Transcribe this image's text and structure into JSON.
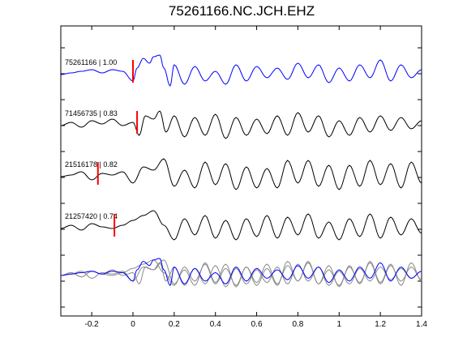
{
  "chart_data": {
    "type": "line",
    "title": "75261166.NC.JCH.EHZ",
    "xlabel": "",
    "ylabel": "",
    "xlim": [
      -0.35,
      1.4
    ],
    "xticks": [
      "-0.2",
      "0",
      "0.2",
      "0.4",
      "0.6",
      "0.8",
      "1",
      "1.2",
      "1.4"
    ],
    "xtick_values": [
      -0.2,
      0,
      0.2,
      0.4,
      0.6,
      0.8,
      1,
      1.2,
      1.4
    ],
    "grid": false,
    "colors": {
      "reference": "#0000ff",
      "other": "#000000",
      "stack_other": "#8a8a8a",
      "pick": "#ff0000",
      "axes": "#000000"
    },
    "traces": [
      {
        "label": "75261166 | 1.00",
        "pick_time": 0.0,
        "color": "reference",
        "x": [
          -0.35,
          -0.3,
          -0.25,
          -0.2,
          -0.15,
          -0.1,
          -0.05,
          0,
          0.02,
          0.05,
          0.08,
          0.1,
          0.13,
          0.15,
          0.18,
          0.2,
          0.25,
          0.3,
          0.35,
          0.4,
          0.45,
          0.5,
          0.55,
          0.6,
          0.65,
          0.7,
          0.75,
          0.8,
          0.85,
          0.9,
          0.95,
          1.0,
          1.05,
          1.1,
          1.15,
          1.2,
          1.25,
          1.3,
          1.35,
          1.4
        ],
        "y": [
          0,
          0.05,
          0.1,
          0.15,
          0.05,
          0.15,
          0.1,
          -0.2,
          0.2,
          0.5,
          0.35,
          0.55,
          0.6,
          0.2,
          -0.35,
          0.3,
          -0.3,
          0.25,
          -0.2,
          0.1,
          -0.3,
          0.3,
          -0.2,
          0.25,
          -0.1,
          0.2,
          -0.15,
          0.35,
          -0.1,
          0.3,
          -0.25,
          0.2,
          -0.2,
          0.3,
          -0.1,
          0.45,
          -0.2,
          0.3,
          -0.1,
          0.15
        ]
      },
      {
        "label": "71456735 | 0.83",
        "pick_time": 0.02,
        "color": "other",
        "x": [
          -0.35,
          -0.3,
          -0.25,
          -0.2,
          -0.15,
          -0.1,
          -0.05,
          0,
          0.03,
          0.06,
          0.1,
          0.13,
          0.16,
          0.2,
          0.25,
          0.3,
          0.35,
          0.4,
          0.45,
          0.5,
          0.55,
          0.6,
          0.65,
          0.7,
          0.75,
          0.8,
          0.85,
          0.9,
          0.95,
          1.0,
          1.05,
          1.1,
          1.15,
          1.2,
          1.25,
          1.3,
          1.35,
          1.4
        ],
        "y": [
          0,
          0.1,
          -0.05,
          0.15,
          0.05,
          0.2,
          0.0,
          0.1,
          -0.3,
          0.3,
          0.2,
          0.45,
          -0.2,
          0.3,
          -0.35,
          0.25,
          -0.3,
          0.35,
          -0.4,
          0.25,
          -0.3,
          0.2,
          -0.25,
          0.3,
          -0.3,
          0.4,
          -0.2,
          0.3,
          -0.35,
          0.15,
          -0.3,
          0.25,
          -0.2,
          0.3,
          -0.15,
          0.25,
          -0.1,
          0.15
        ]
      },
      {
        "label": "21516178 | 0.82",
        "pick_time": -0.17,
        "color": "other",
        "x": [
          -0.35,
          -0.3,
          -0.25,
          -0.2,
          -0.15,
          -0.1,
          -0.05,
          0,
          0.05,
          0.1,
          0.15,
          0.2,
          0.25,
          0.3,
          0.35,
          0.4,
          0.45,
          0.5,
          0.55,
          0.6,
          0.65,
          0.7,
          0.75,
          0.8,
          0.85,
          0.9,
          0.95,
          1.0,
          1.05,
          1.1,
          1.15,
          1.2,
          1.25,
          1.3,
          1.35,
          1.4
        ],
        "y": [
          0,
          0.05,
          0.15,
          -0.1,
          0.1,
          0.05,
          0.15,
          -0.2,
          0.3,
          0.2,
          0.55,
          -0.3,
          0.2,
          -0.35,
          0.45,
          -0.25,
          0.4,
          -0.4,
          0.3,
          -0.35,
          0.25,
          -0.35,
          0.5,
          -0.2,
          0.5,
          -0.3,
          0.35,
          -0.4,
          0.35,
          -0.3,
          0.5,
          -0.25,
          0.4,
          -0.35,
          0.45,
          -0.2
        ]
      },
      {
        "label": "21257420 | 0.74",
        "pick_time": -0.09,
        "color": "other",
        "x": [
          -0.35,
          -0.3,
          -0.25,
          -0.2,
          -0.15,
          -0.1,
          -0.05,
          0,
          0.05,
          0.1,
          0.15,
          0.2,
          0.25,
          0.3,
          0.35,
          0.4,
          0.45,
          0.5,
          0.55,
          0.6,
          0.65,
          0.7,
          0.75,
          0.8,
          0.85,
          0.9,
          0.95,
          1.0,
          1.05,
          1.1,
          1.15,
          1.2,
          1.25,
          1.3,
          1.35,
          1.4
        ],
        "y": [
          0,
          0.1,
          -0.05,
          0.15,
          0.05,
          0.0,
          0.1,
          0.25,
          0.4,
          0.55,
          0.1,
          -0.35,
          0.3,
          -0.2,
          0.4,
          -0.3,
          0.25,
          -0.35,
          0.3,
          -0.25,
          0.4,
          -0.3,
          0.35,
          -0.2,
          0.45,
          -0.3,
          0.2,
          -0.35,
          0.3,
          -0.25,
          0.45,
          -0.3,
          0.35,
          -0.2,
          0.3,
          -0.15
        ]
      }
    ]
  }
}
